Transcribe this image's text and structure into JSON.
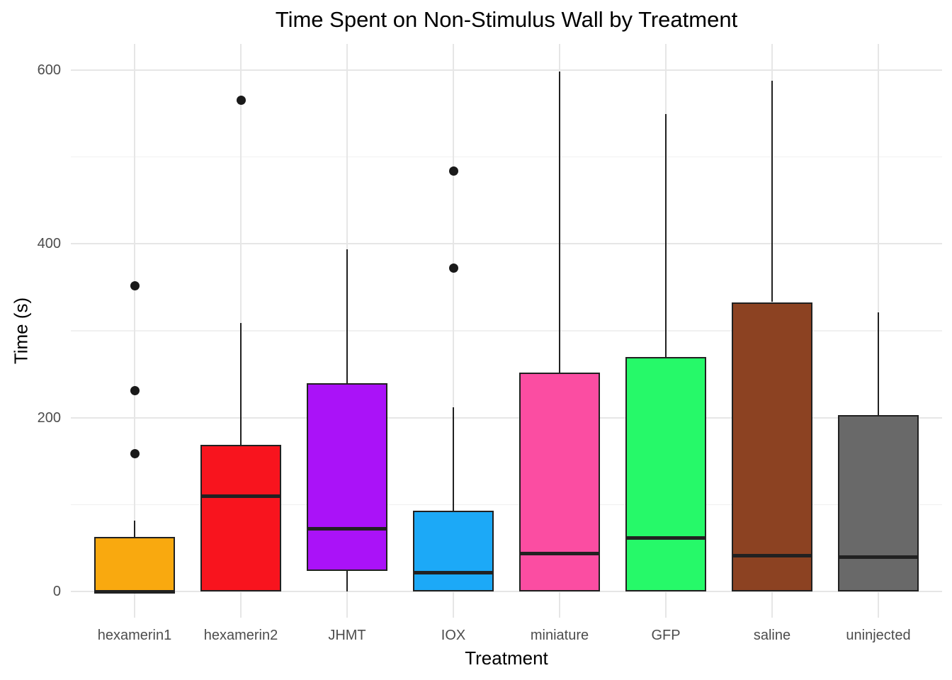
{
  "chart_data": {
    "type": "boxplot",
    "title": "Time Spent on Non-Stimulus Wall by Treatment",
    "xlabel": "Treatment",
    "ylabel": "Time (s)",
    "ylim": [
      -30,
      630
    ],
    "y_ticks": [
      0,
      200,
      400,
      600
    ],
    "y_minor_ticks": [
      100,
      300,
      500
    ],
    "grid": "horizontal major+minor, vertical major per category; no axis lines or tick marks",
    "legend": "none",
    "categories": [
      "hexamerin1",
      "hexamerin2",
      "JHMT",
      "IOX",
      "miniature",
      "GFP",
      "saline",
      "uninjected"
    ],
    "series": [
      {
        "name": "hexamerin1",
        "color": "#F9A90F",
        "whisker_low": 0,
        "q1": 0,
        "median": 0,
        "q3": 63,
        "whisker_high": 82,
        "outliers": [
          159,
          231,
          352
        ]
      },
      {
        "name": "hexamerin2",
        "color": "#F8141E",
        "whisker_low": 0,
        "q1": 0,
        "median": 110,
        "q3": 169,
        "whisker_high": 309,
        "outliers": [
          565
        ]
      },
      {
        "name": "JHMT",
        "color": "#AA12F8",
        "whisker_low": 0,
        "q1": 24,
        "median": 72,
        "q3": 240,
        "whisker_high": 394,
        "outliers": []
      },
      {
        "name": "IOX",
        "color": "#1CA9F7",
        "whisker_low": 0,
        "q1": 0,
        "median": 22,
        "q3": 93,
        "whisker_high": 212,
        "outliers": [
          372,
          484
        ]
      },
      {
        "name": "miniature",
        "color": "#FB4DA2",
        "whisker_low": 0,
        "q1": 0,
        "median": 44,
        "q3": 252,
        "whisker_high": 598,
        "outliers": []
      },
      {
        "name": "GFP",
        "color": "#26F969",
        "whisker_low": 0,
        "q1": 0,
        "median": 62,
        "q3": 270,
        "whisker_high": 549,
        "outliers": []
      },
      {
        "name": "saline",
        "color": "#8C4222",
        "whisker_low": 0,
        "q1": 0,
        "median": 41,
        "q3": 333,
        "whisker_high": 588,
        "outliers": []
      },
      {
        "name": "uninjected",
        "color": "#696969",
        "whisker_low": 0,
        "q1": 0,
        "median": 40,
        "q3": 203,
        "whisker_high": 321,
        "outliers": []
      }
    ],
    "style_colors": {
      "box_border": "#212121",
      "outlier_point": "#1a1a1a",
      "grid_major": "#e6e6e6",
      "grid_minor": "#f0f0f0",
      "tick_label": "#4d4d4d",
      "text": "#000000",
      "background": "#ffffff"
    }
  }
}
